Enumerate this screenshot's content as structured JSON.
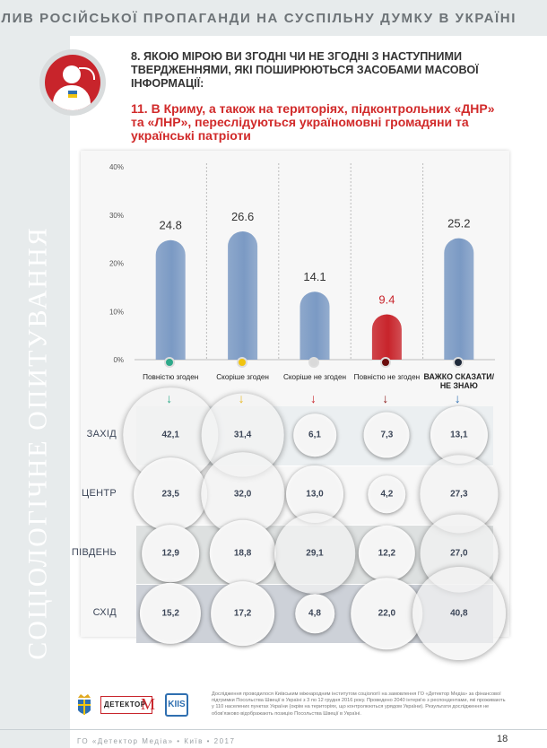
{
  "header": {
    "title": "ВПЛИВ РОСІЙСЬКОЇ ПРОПАГАНДИ НА СУСПІЛЬНУ ДУМКУ В УКРАЇНІ"
  },
  "sidebar": {
    "text": "СОЦІОЛОГІЧНЕ ОПИТУВАННЯ"
  },
  "question": {
    "main": "8. ЯКОЮ МІРОЮ ВИ ЗГОДНІ ЧИ НЕ ЗГОДНІ З НАСТУПНИМИ ТВЕРДЖЕННЯМИ, ЯКІ ПОШИРЮЮТЬСЯ ЗАСОБАМИ МАСОВОЇ ІНФОРМАЦІЇ:",
    "sub": "11.  В Криму, а також на територіях, підконтрольних «ДНР» та «ЛНР»,  переслідуються україномовні громадяни та українські патріоти"
  },
  "chart_data": {
    "type": "bar",
    "categories": [
      "Повністю згоден",
      "Скоріше згоден",
      "Скоріше не згоден",
      "Повністю не згоден",
      "ВАЖКО СКАЗАТИ/ НЕ ЗНАЮ"
    ],
    "values": [
      24.8,
      26.6,
      14.1,
      9.4,
      25.2
    ],
    "value_labels": [
      "24.8",
      "26.6",
      "14.1",
      "9.4",
      "25.2"
    ],
    "yticks": [
      "40%",
      "30%",
      "20%",
      "10%",
      "0%"
    ],
    "ylim": [
      0,
      40
    ],
    "bar_colors": [
      "#7b9ac4",
      "#7b9ac4",
      "#7b9ac4",
      "#c8242b",
      "#7b9ac4"
    ],
    "dot_colors": [
      "#2fa98a",
      "#f1c40f",
      "#d9d9d9",
      "#6b0d0d",
      "#1f2a3a"
    ],
    "arrow_colors": [
      "#2fa98a",
      "#e8b820",
      "#c8242b",
      "#8a1a1a",
      "#2f6fb0"
    ],
    "regional": {
      "type": "bubble-table",
      "rows": [
        "ЗАХІД",
        "ЦЕНТР",
        "ПІВДЕНЬ",
        "СХІД"
      ],
      "values": [
        [
          "42,1",
          "31,4",
          "6,1",
          "7,3",
          "13,1"
        ],
        [
          "23,5",
          "32,0",
          "13,0",
          "4,2",
          "27,3"
        ],
        [
          "12,9",
          "18,8",
          "29,1",
          "12,2",
          "27,0"
        ],
        [
          "15,2",
          "17,2",
          "4,8",
          "22,0",
          "40,8"
        ]
      ]
    }
  },
  "footer": {
    "note": "Дослідження проводилося Київським міжнародним інститутом соціології на замовлення ГО «Детектор Медіа» за фінансової підтримки Посольства Швеції в Україні з 3 по 12 грудня 2016 року. Проведено 2040 інтерв'ю з респондентами, які проживають у 110 населених пунктах України (окрім на територіях, що контролюються урядом України). Результати дослідження не обов'язково відображають позицію Посольства Швеції в Україні.",
    "org": "ГО «Детектор Медіа» • Київ • 2017",
    "page": "18",
    "logo_dm": "ДЕТЕКТОР",
    "logo_dm_m": "М",
    "logo_kiis": "KIIS"
  }
}
